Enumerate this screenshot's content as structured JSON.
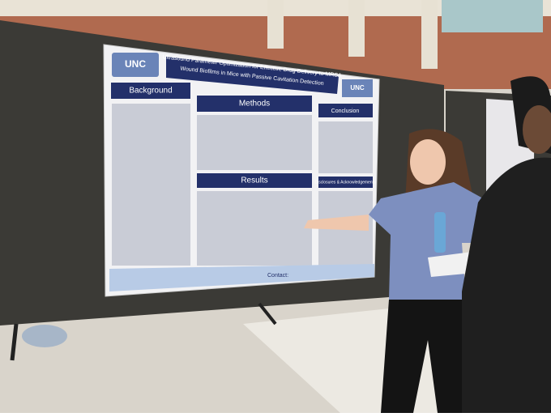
{
  "poster": {
    "logo": "UNC",
    "title_lines": [
      "Ultrasound Parameter Optimization for Effective Drug Delivery to MRSA",
      "Wound Biofilms in Mice with Passive Cavitation Detection"
    ],
    "sections": [
      "Background",
      "Methods",
      "Conclusion",
      "Results",
      "Disclosures & Acknowledgements"
    ],
    "contact": "Contact:"
  }
}
